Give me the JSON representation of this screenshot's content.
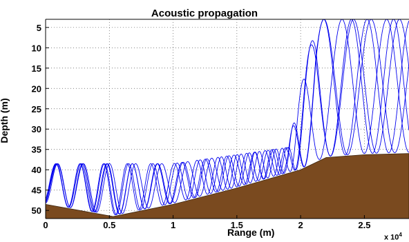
{
  "chart_data": {
    "type": "line",
    "title": "Acoustic propagation",
    "xlabel": "Range (m)",
    "ylabel": "Depth (m)",
    "x_multiplier_label": "x 10",
    "x_multiplier_exponent": "4",
    "xlim": [
      0,
      2.85
    ],
    "ylim": [
      52,
      3
    ],
    "y_reversed": true,
    "grid": true,
    "x_ticks": [
      0,
      0.5,
      1,
      1.5,
      2,
      2.5
    ],
    "x_tick_labels": [
      "0",
      "0.5",
      "1",
      "1.5",
      "2",
      "2.5"
    ],
    "y_ticks": [
      5,
      10,
      15,
      20,
      25,
      30,
      35,
      40,
      45,
      50
    ],
    "y_tick_labels": [
      "5",
      "10",
      "15",
      "20",
      "25",
      "30",
      "35",
      "40",
      "45",
      "50"
    ],
    "bathymetry": {
      "x": [
        0,
        0.53,
        1.0,
        1.5,
        2.0,
        2.2,
        2.5,
        2.85
      ],
      "y": [
        48.5,
        51.5,
        48.5,
        44.5,
        40.0,
        37.0,
        36.3,
        36.0
      ],
      "color": "#7a4a1f"
    },
    "ray_color": "#0000ee",
    "rays": {
      "top_shallow": 38.5,
      "top_mid": 34.5,
      "top_surface": 3,
      "periods_1": [
        0.185,
        0.19,
        0.195,
        0.2,
        0.205
      ],
      "periods_2": [
        0.115,
        0.12,
        0.125,
        0.13,
        0.135
      ],
      "phase": [
        0.03,
        0.06,
        0.0,
        0.09,
        0.045
      ]
    }
  }
}
